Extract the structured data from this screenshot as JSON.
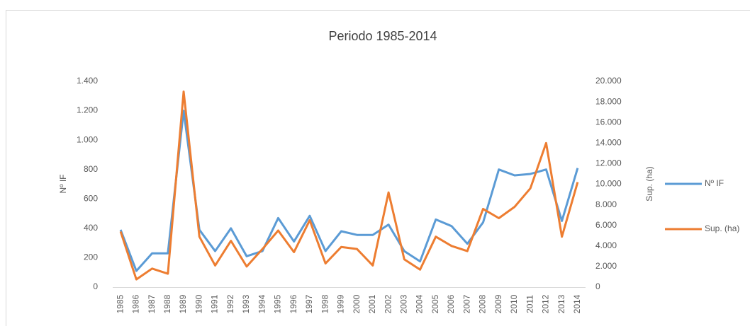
{
  "chart_data": {
    "type": "line",
    "title": "Periodo 1985-2014",
    "y_label": "Nº IF",
    "y2_label": "Sup. (ha)",
    "categories": [
      "1985",
      "1986",
      "1987",
      "1988",
      "1989",
      "1990",
      "1991",
      "1992",
      "1993",
      "1994",
      "1995",
      "1996",
      "1997",
      "1998",
      "1999",
      "2000",
      "2001",
      "2002",
      "2003",
      "2004",
      "2005",
      "2006",
      "2007",
      "2008",
      "2009",
      "2010",
      "2011",
      "2012",
      "2013",
      "2014"
    ],
    "series": [
      {
        "name": "Nº IF",
        "color": "#5b9bd5",
        "values": [
          390,
          110,
          230,
          230,
          1200,
          390,
          245,
          400,
          210,
          245,
          470,
          310,
          485,
          245,
          380,
          355,
          355,
          425,
          245,
          175,
          460,
          415,
          295,
          440,
          800,
          760,
          770,
          800,
          450,
          810
        ]
      },
      {
        "name": "Sup. (ha)",
        "color": "#ed7d31",
        "axis": "y2",
        "values": [
          5400,
          750,
          1800,
          1300,
          19000,
          4900,
          2100,
          4500,
          2000,
          3700,
          5500,
          3400,
          6500,
          2300,
          3900,
          3700,
          2100,
          9200,
          2700,
          1700,
          4900,
          4000,
          3500,
          7600,
          6700,
          7800,
          9600,
          14000,
          4900,
          10200
        ]
      }
    ],
    "ylim": [
      0,
      1400
    ],
    "yticks": [
      0,
      200,
      400,
      600,
      800,
      {
        "value": 1000,
        "label": "1.000"
      },
      {
        "value": 1200,
        "label": "1.200"
      },
      {
        "value": 1400,
        "label": "1.400"
      }
    ],
    "y2lim": [
      0,
      20000
    ],
    "y2ticks": [
      0,
      {
        "value": 2000,
        "label": "2.000"
      },
      {
        "value": 4000,
        "label": "4.000"
      },
      {
        "value": 6000,
        "label": "6.000"
      },
      {
        "value": 8000,
        "label": "8.000"
      },
      {
        "value": 10000,
        "label": "10.000"
      },
      {
        "value": 12000,
        "label": "12.000"
      },
      {
        "value": 14000,
        "label": "14.000"
      },
      {
        "value": 16000,
        "label": "16.000"
      },
      {
        "value": 18000,
        "label": "18.000"
      },
      {
        "value": 20000,
        "label": "20.000"
      }
    ],
    "legend": "right"
  }
}
